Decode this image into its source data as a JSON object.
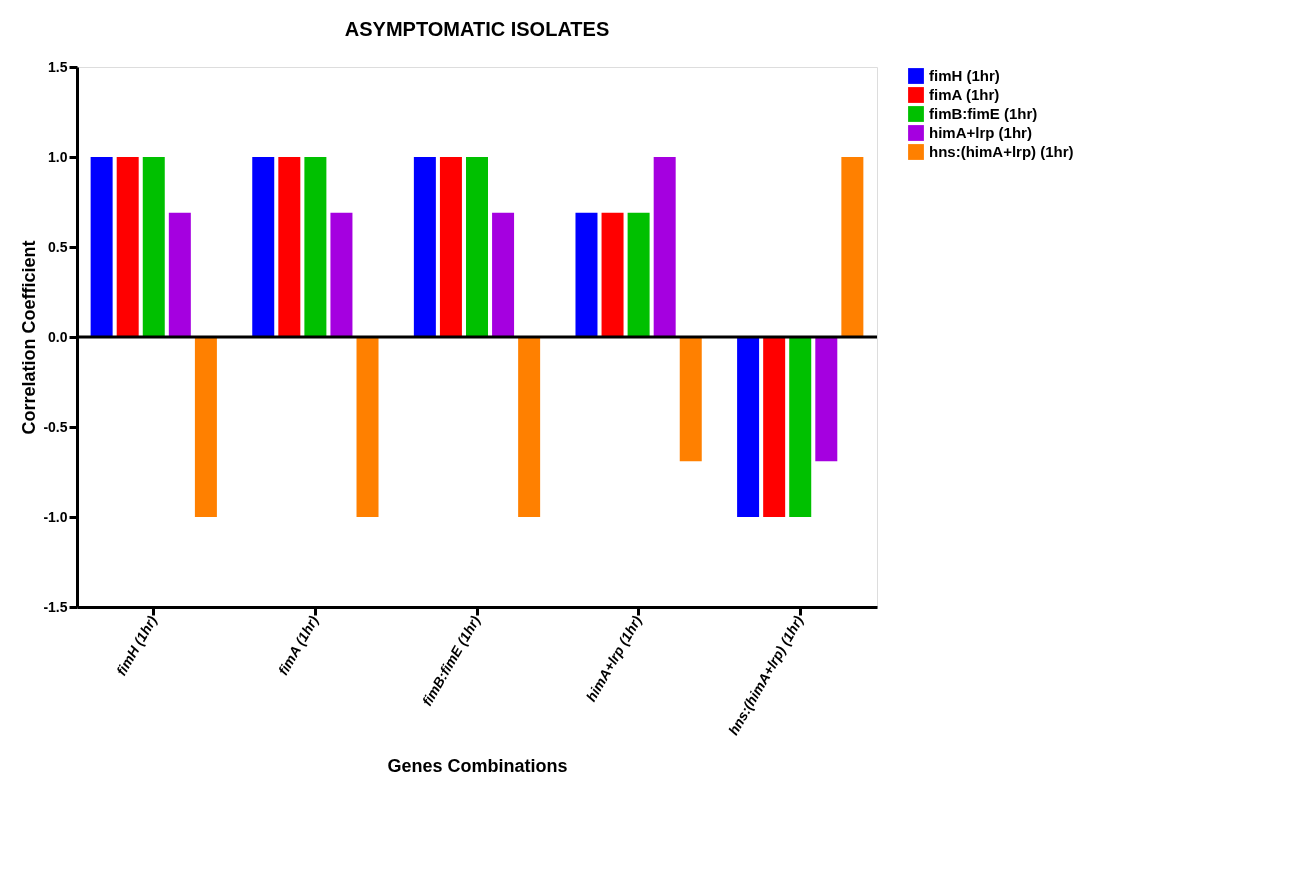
{
  "chart_data": {
    "type": "bar",
    "title": "ASYMPTOMATIC ISOLATES",
    "xlabel": "Genes Combinations",
    "ylabel": "Correlation Coefficient",
    "categories": [
      "fimH (1hr)",
      "fimA (1hr)",
      "fimB:fimE (1hr)",
      "himA+lrp (1hr)",
      "hns:(himA+lrp) (1hr)"
    ],
    "series": [
      {
        "name": "fimH (1hr)",
        "color": "#0000ff",
        "values": [
          1.0,
          1.0,
          1.0,
          0.69,
          -1.0
        ]
      },
      {
        "name": "fimA (1hr)",
        "color": "#ff0000",
        "values": [
          1.0,
          1.0,
          1.0,
          0.69,
          -1.0
        ]
      },
      {
        "name": "fimB:fimE (1hr)",
        "color": "#00c000",
        "values": [
          1.0,
          1.0,
          1.0,
          0.69,
          -1.0
        ]
      },
      {
        "name": "himA+lrp (1hr)",
        "color": "#a500e0",
        "values": [
          0.69,
          0.69,
          0.69,
          1.0,
          -0.69
        ]
      },
      {
        "name": "hns:(himA+lrp) (1hr)",
        "color": "#ff8000",
        "values": [
          -1.0,
          -1.0,
          -1.0,
          -0.69,
          1.0
        ]
      }
    ],
    "ylim": [
      -1.5,
      1.5
    ],
    "yticks": [
      {
        "value": -1.5,
        "label": "-1.5"
      },
      {
        "value": -1.0,
        "label": "-1.0"
      },
      {
        "value": -0.5,
        "label": "-0.5"
      },
      {
        "value": 0.0,
        "label": "0.0"
      },
      {
        "value": 0.5,
        "label": "0.5"
      },
      {
        "value": 1.0,
        "label": "1.0"
      },
      {
        "value": 1.5,
        "label": "1.5"
      }
    ],
    "ref_lines": [
      {
        "axis": "y",
        "value": 0
      }
    ],
    "grid": false,
    "legend": "top right"
  }
}
